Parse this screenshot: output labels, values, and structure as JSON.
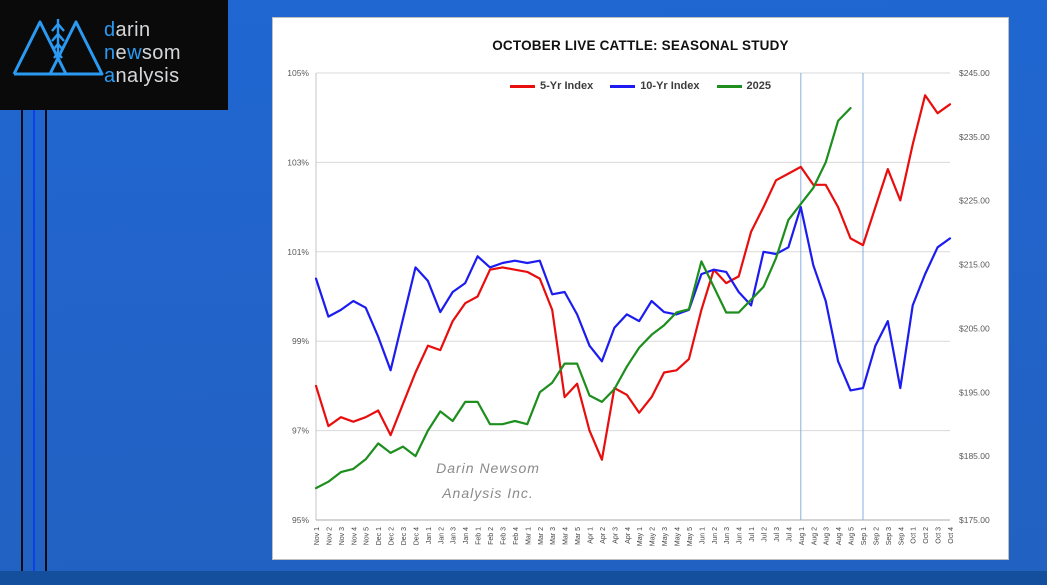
{
  "logo": {
    "box_color": "#0a0a0a",
    "accent_color": "#2b9af3",
    "text_color": "#d5d7d9",
    "l1a": "d",
    "l1b": "arin",
    "l2a": "n",
    "l2b": "e",
    "l2c": "w",
    "l2d": "som",
    "l3a": "a",
    "l3b": "nalysis"
  },
  "chart_data": {
    "type": "line",
    "title": "OCTOBER LIVE CATTLE: SEASONAL STUDY",
    "grid_color": "#d9d9d9",
    "axis_text_color": "#595959",
    "x_label_color": "#444444",
    "x_labels": [
      "Nov 1",
      "Nov 2",
      "Nov 3",
      "Nov 4",
      "Nov 5",
      "Dec 1",
      "Dec 2",
      "Dec 3",
      "Dec 4",
      "Jan 1",
      "Jan 2",
      "Jan 3",
      "Jan 4",
      "Feb 1",
      "Feb 2",
      "Feb 3",
      "Feb 4",
      "Mar 1",
      "Mar 2",
      "Mar 3",
      "Mar 4",
      "Mar 5",
      "Apr 1",
      "Apr 2",
      "Apr 3",
      "Apr 4",
      "May 1",
      "May 2",
      "May 3",
      "May 4",
      "May 5",
      "Jun 1",
      "Jun 2",
      "Jun 3",
      "Jun 4",
      "Jul 1",
      "Jul 2",
      "Jul 3",
      "Jul 4",
      "Aug 1",
      "Aug 2",
      "Aug 3",
      "Aug 4",
      "Aug 5",
      "Sep 1",
      "Sep 2",
      "Sep 3",
      "Sep 4",
      "Oct 1",
      "Oct 2",
      "Oct 3",
      "Oct 4"
    ],
    "left_axis": {
      "min": 95,
      "max": 105,
      "ticks": [
        {
          "label": "105%",
          "value": 105
        },
        {
          "label": "103%",
          "value": 103
        },
        {
          "label": "101%",
          "value": 101
        },
        {
          "label": "99%",
          "value": 99
        },
        {
          "label": "97%",
          "value": 97
        },
        {
          "label": "95%",
          "value": 95
        }
      ]
    },
    "right_axis": {
      "min": 175,
      "max": 245,
      "ticks": [
        {
          "label": "$245.00",
          "value": 245
        },
        {
          "label": "$235.00",
          "value": 235
        },
        {
          "label": "$225.00",
          "value": 225
        },
        {
          "label": "$215.00",
          "value": 215
        },
        {
          "label": "$205.00",
          "value": 205
        },
        {
          "label": "$195.00",
          "value": 195
        },
        {
          "label": "$185.00",
          "value": 185
        },
        {
          "label": "$175.00",
          "value": 175
        }
      ]
    },
    "event_lines": {
      "color": "#88aede",
      "at_labels": [
        "Aug 1",
        "Sep 1"
      ]
    },
    "watermark": {
      "lines": [
        "Darin Newsom",
        "Analysis Inc."
      ],
      "color": "#8a8a8a"
    },
    "series": [
      {
        "name": "5-Yr Index",
        "color": "#e90e0e",
        "axis": "left",
        "values": [
          98.0,
          97.1,
          97.3,
          97.2,
          97.3,
          97.45,
          96.9,
          97.6,
          98.3,
          98.9,
          98.8,
          99.45,
          99.85,
          100.0,
          100.6,
          100.65,
          100.6,
          100.55,
          100.4,
          99.7,
          97.75,
          98.05,
          97.0,
          96.35,
          97.95,
          97.8,
          97.4,
          97.75,
          98.3,
          98.35,
          98.6,
          99.7,
          100.6,
          100.3,
          100.45,
          101.45,
          102.0,
          102.6,
          102.75,
          102.9,
          102.5,
          102.5,
          102.0,
          101.3,
          101.15,
          102.0,
          102.85,
          102.15,
          103.4,
          104.5,
          104.1,
          104.3
        ]
      },
      {
        "name": "10-Yr Index",
        "color": "#1c1cf0",
        "axis": "left",
        "values": [
          100.4,
          99.55,
          99.7,
          99.9,
          99.75,
          99.1,
          98.35,
          99.5,
          100.65,
          100.35,
          99.65,
          100.1,
          100.3,
          100.9,
          100.65,
          100.75,
          100.8,
          100.75,
          100.8,
          100.05,
          100.1,
          99.6,
          98.9,
          98.55,
          99.3,
          99.6,
          99.45,
          99.9,
          99.65,
          99.6,
          99.7,
          100.5,
          100.6,
          100.55,
          100.1,
          99.8,
          101.0,
          100.95,
          101.1,
          102.0,
          100.7,
          99.9,
          98.55,
          97.9,
          97.95,
          98.9,
          99.45,
          97.95,
          99.8,
          100.5,
          101.1,
          101.3
        ]
      },
      {
        "name": "2025",
        "color": "#1e8e1e",
        "axis": "right",
        "values": [
          180,
          181,
          182.5,
          183,
          184.5,
          187,
          185.5,
          186.5,
          185,
          189,
          192,
          190.5,
          193.5,
          193.5,
          190,
          190,
          190.5,
          190,
          195,
          196.5,
          199.5,
          199.5,
          194.5,
          193.5,
          195.5,
          199,
          202,
          204,
          205.5,
          207.5,
          208,
          215.5,
          211.5,
          207.5,
          207.5,
          209.5,
          211.5,
          216,
          222,
          224.5,
          227,
          231,
          237.5,
          239.5,
          null,
          null,
          null,
          null,
          null,
          null,
          null,
          null
        ]
      }
    ]
  }
}
